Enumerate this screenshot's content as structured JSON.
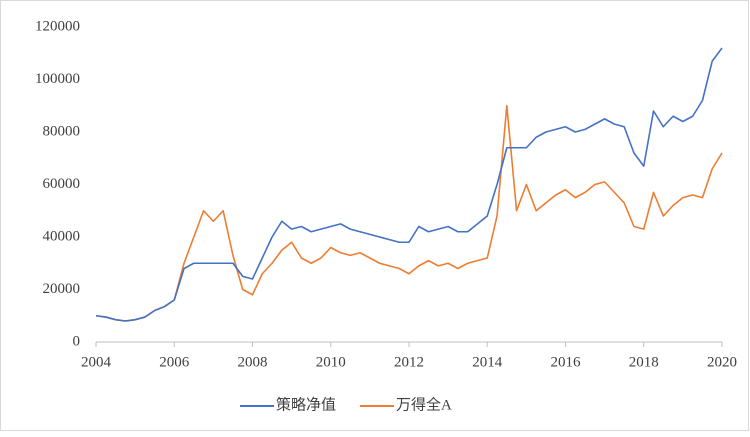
{
  "chart_data": {
    "type": "line",
    "x": [
      2004,
      2004.25,
      2004.5,
      2004.75,
      2005,
      2005.25,
      2005.5,
      2005.75,
      2006,
      2006.25,
      2006.5,
      2006.75,
      2007,
      2007.25,
      2007.5,
      2007.75,
      2008,
      2008.25,
      2008.5,
      2008.75,
      2009,
      2009.25,
      2009.5,
      2009.75,
      2010,
      2010.25,
      2010.5,
      2010.75,
      2011,
      2011.25,
      2011.5,
      2011.75,
      2012,
      2012.25,
      2012.5,
      2012.75,
      2013,
      2013.25,
      2013.5,
      2013.75,
      2014,
      2014.25,
      2014.5,
      2014.75,
      2015,
      2015.25,
      2015.5,
      2015.75,
      2016,
      2016.25,
      2016.5,
      2016.75,
      2017,
      2017.25,
      2017.5,
      2017.75,
      2018,
      2018.25,
      2018.5,
      2018.75,
      2019,
      2019.25,
      2019.5,
      2019.75,
      2020
    ],
    "series": [
      {
        "name": "策略净值",
        "color": "#4472c4",
        "values": [
          10000,
          9500,
          8500,
          8000,
          8500,
          9500,
          12000,
          13500,
          16000,
          28000,
          30000,
          30000,
          30000,
          30000,
          30000,
          25000,
          24000,
          32000,
          40000,
          46000,
          43000,
          44000,
          42000,
          43000,
          44000,
          45000,
          43000,
          42000,
          41000,
          40000,
          39000,
          38000,
          38000,
          44000,
          42000,
          43000,
          44000,
          42000,
          42000,
          45000,
          48000,
          60000,
          74000,
          74000,
          74000,
          78000,
          80000,
          81000,
          82000,
          80000,
          81000,
          83000,
          85000,
          83000,
          82000,
          72000,
          67000,
          88000,
          82000,
          86000,
          84000,
          86000,
          92000,
          107000,
          112000
        ]
      },
      {
        "name": "万得全A",
        "color": "#ed7d31",
        "values": [
          10000,
          9500,
          8500,
          8000,
          8500,
          9500,
          12000,
          13500,
          16000,
          30000,
          40000,
          50000,
          46000,
          50000,
          33000,
          20000,
          18000,
          26000,
          30000,
          35000,
          38000,
          32000,
          30000,
          32000,
          36000,
          34000,
          33000,
          34000,
          32000,
          30000,
          29000,
          28000,
          26000,
          29000,
          31000,
          29000,
          30000,
          28000,
          30000,
          31000,
          32000,
          48000,
          90000,
          50000,
          60000,
          50000,
          53000,
          56000,
          58000,
          55000,
          57000,
          60000,
          61000,
          57000,
          53000,
          44000,
          43000,
          57000,
          48000,
          52000,
          55000,
          56000,
          55000,
          66000,
          72000
        ]
      }
    ],
    "xlim": [
      2004,
      2020
    ],
    "xticks": [
      2004,
      2006,
      2008,
      2010,
      2012,
      2014,
      2016,
      2018,
      2020
    ],
    "ylim": [
      0,
      120000
    ],
    "yticks": [
      0,
      20000,
      40000,
      60000,
      80000,
      100000,
      120000
    ],
    "grid": false
  }
}
